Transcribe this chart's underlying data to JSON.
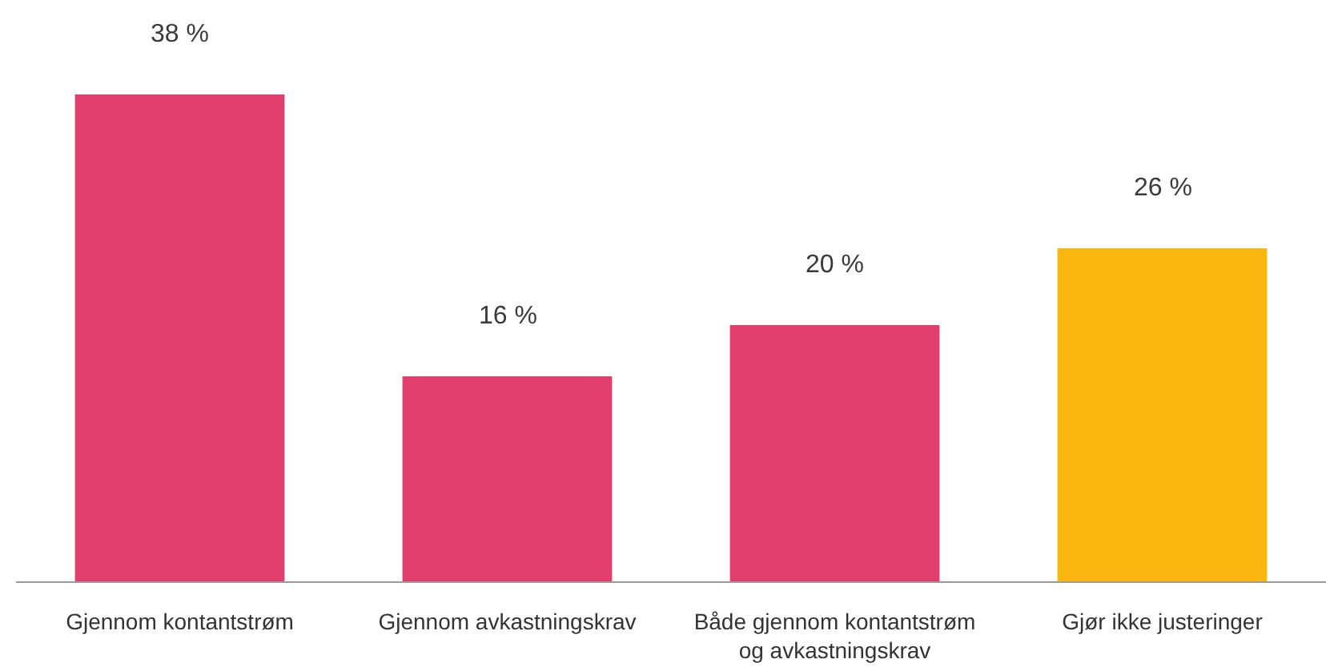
{
  "chart_data": {
    "type": "bar",
    "categories": [
      "Gjennom kontantstrøm",
      "Gjennom avkastningskrav",
      "Både gjennom kontantstrøm\nog avkastningskrav",
      "Gjør ikke justeringer"
    ],
    "values": [
      38,
      16,
      20,
      26
    ],
    "colors": [
      "#e03e6c",
      "#e03e6c",
      "#e03e6c",
      "#f9b70f"
    ],
    "value_labels": [
      "38 %",
      "16 %",
      "20 %",
      "26 %"
    ]
  }
}
